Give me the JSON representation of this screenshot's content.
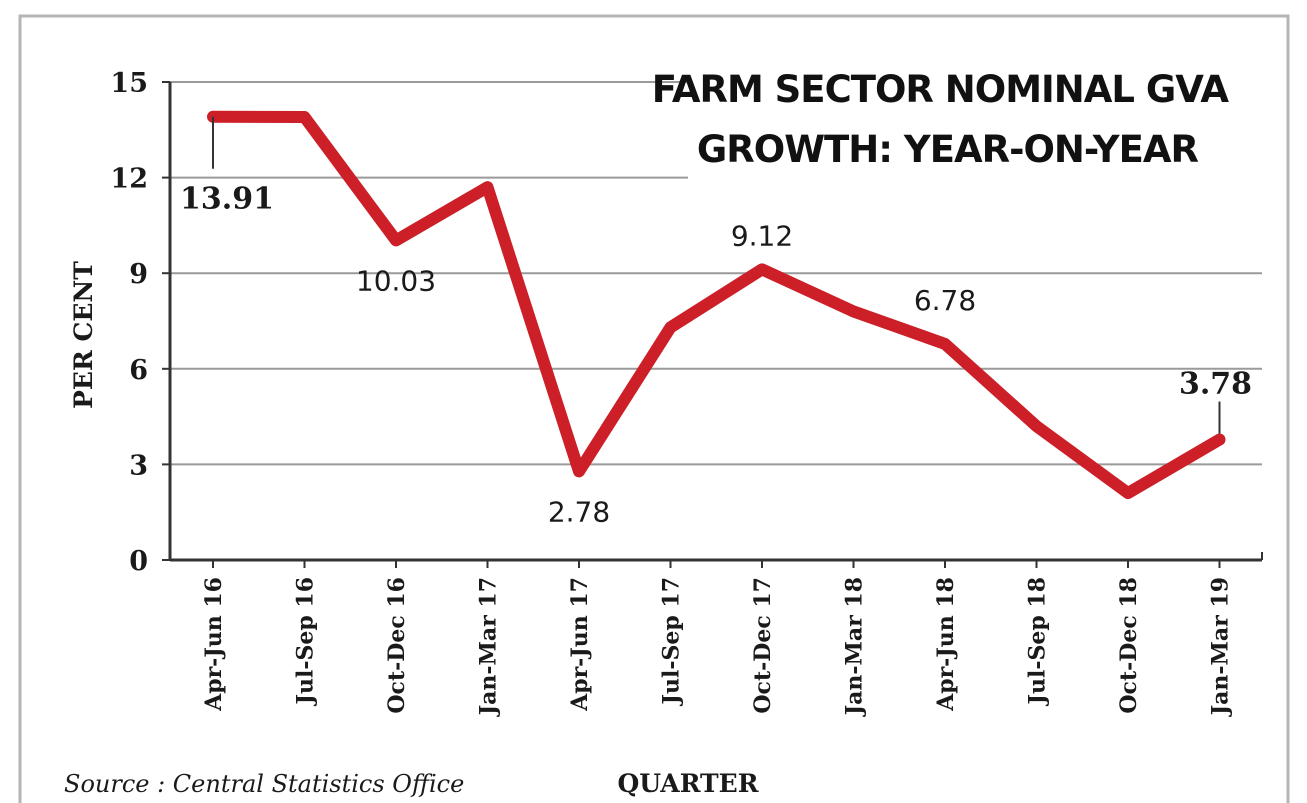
{
  "chart_data": {
    "type": "line",
    "title_lines": [
      "FARM SECTOR NOMINAL GVA",
      "GROWTH: YEAR-ON-YEAR"
    ],
    "xlabel": "QUARTER",
    "ylabel": "PER CENT",
    "source": "Source : Central Statistics Office",
    "ylim": [
      0,
      15
    ],
    "yticks": [
      "0",
      "3",
      "6",
      "9",
      "12",
      "15"
    ],
    "grid": true,
    "categories": [
      "Apr-Jun 16",
      "Jul-Sep 16",
      "Oct-Dec 16",
      "Jan-Mar 17",
      "Apr-Jun 17",
      "Jul-Sep 17",
      "Oct-Dec 17",
      "Jan-Mar 18",
      "Apr-Jun 18",
      "Jul-Sep 18",
      "Oct-Dec 18",
      "Jan-Mar 19"
    ],
    "values": [
      13.91,
      13.9,
      10.03,
      11.7,
      2.78,
      7.3,
      9.12,
      7.8,
      6.78,
      4.2,
      2.1,
      3.78
    ],
    "data_labels": [
      {
        "index": 0,
        "text": "13.91",
        "highlight": true
      },
      {
        "index": 2,
        "text": "10.03",
        "highlight": false
      },
      {
        "index": 4,
        "text": "2.78",
        "highlight": false
      },
      {
        "index": 6,
        "text": "9.12",
        "highlight": false
      },
      {
        "index": 8,
        "text": "6.78",
        "highlight": false
      },
      {
        "index": 11,
        "text": "3.78",
        "highlight": true
      }
    ],
    "colors": {
      "line": "#cc1f27",
      "highlight_label": "#c41e26",
      "grid": "#9a9a9a",
      "axis": "#333333",
      "text": "#1a1a1a"
    }
  }
}
